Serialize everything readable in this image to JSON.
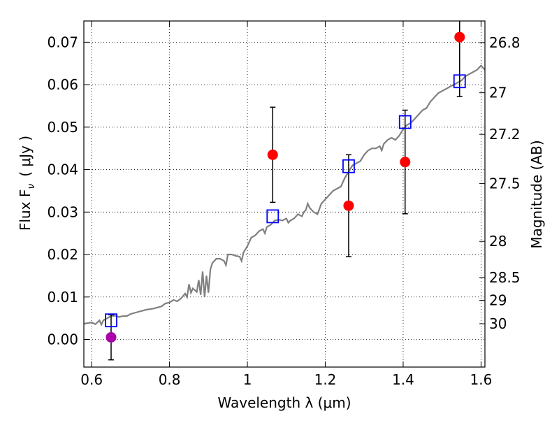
{
  "chart_data": {
    "type": "scatter",
    "xlabel": "Wavelength  λ (μm)",
    "ylabel": "Flux  F",
    "ylabel_sub": "ν",
    "ylabel_units": "( μJy )",
    "ylabel_right": "Magnitude (AB)",
    "xlim": [
      0.58,
      1.61
    ],
    "ylim": [
      -0.0065,
      0.075
    ],
    "grid": true,
    "x_ticks": [
      {
        "value": 0.6,
        "label": "0.6"
      },
      {
        "value": 0.8,
        "label": "0.8"
      },
      {
        "value": 1.0,
        "label": "1"
      },
      {
        "value": 1.2,
        "label": "1.2"
      },
      {
        "value": 1.4,
        "label": "1.4"
      },
      {
        "value": 1.6,
        "label": "1.6"
      }
    ],
    "y_ticks": [
      {
        "value": 0.0,
        "label": "0.00"
      },
      {
        "value": 0.01,
        "label": "0.01"
      },
      {
        "value": 0.02,
        "label": "0.02"
      },
      {
        "value": 0.03,
        "label": "0.03"
      },
      {
        "value": 0.04,
        "label": "0.04"
      },
      {
        "value": 0.05,
        "label": "0.05"
      },
      {
        "value": 0.06,
        "label": "0.06"
      },
      {
        "value": 0.07,
        "label": "0.07"
      }
    ],
    "right_ticks": [
      {
        "flux": 0.0699,
        "label": "26.8"
      },
      {
        "flux": 0.0581,
        "label": "27"
      },
      {
        "flux": 0.0483,
        "label": "27.2"
      },
      {
        "flux": 0.0367,
        "label": "27.5"
      },
      {
        "flux": 0.0231,
        "label": "28"
      },
      {
        "flux": 0.0146,
        "label": "28.5"
      },
      {
        "flux": 0.0092,
        "label": "29"
      },
      {
        "flux": 0.0037,
        "label": "30"
      }
    ],
    "series": [
      {
        "kind": "model_sed",
        "color": "#808080",
        "points": [
          [
            0.58,
            0.0037
          ],
          [
            0.6,
            0.004
          ],
          [
            0.61,
            0.0036
          ],
          [
            0.62,
            0.0045
          ],
          [
            0.625,
            0.0035
          ],
          [
            0.63,
            0.0045
          ],
          [
            0.64,
            0.005
          ],
          [
            0.65,
            0.0055
          ],
          [
            0.66,
            0.0056
          ],
          [
            0.67,
            0.0053
          ],
          [
            0.68,
            0.0055
          ],
          [
            0.69,
            0.0055
          ],
          [
            0.7,
            0.006
          ],
          [
            0.72,
            0.0065
          ],
          [
            0.74,
            0.007
          ],
          [
            0.76,
            0.0073
          ],
          [
            0.78,
            0.0078
          ],
          [
            0.785,
            0.0082
          ],
          [
            0.79,
            0.0085
          ],
          [
            0.8,
            0.0087
          ],
          [
            0.81,
            0.0093
          ],
          [
            0.82,
            0.009
          ],
          [
            0.83,
            0.0097
          ],
          [
            0.84,
            0.0108
          ],
          [
            0.845,
            0.01
          ],
          [
            0.85,
            0.013
          ],
          [
            0.855,
            0.011
          ],
          [
            0.86,
            0.012
          ],
          [
            0.87,
            0.0112
          ],
          [
            0.875,
            0.014
          ],
          [
            0.88,
            0.0105
          ],
          [
            0.885,
            0.016
          ],
          [
            0.89,
            0.01
          ],
          [
            0.895,
            0.015
          ],
          [
            0.9,
            0.011
          ],
          [
            0.905,
            0.0165
          ],
          [
            0.91,
            0.018
          ],
          [
            0.92,
            0.019
          ],
          [
            0.93,
            0.019
          ],
          [
            0.94,
            0.0185
          ],
          [
            0.945,
            0.0175
          ],
          [
            0.95,
            0.02
          ],
          [
            0.96,
            0.02
          ],
          [
            0.97,
            0.0197
          ],
          [
            0.98,
            0.0195
          ],
          [
            0.985,
            0.0185
          ],
          [
            0.99,
            0.0205
          ],
          [
            1.0,
            0.022
          ],
          [
            1.01,
            0.024
          ],
          [
            1.02,
            0.0245
          ],
          [
            1.03,
            0.0255
          ],
          [
            1.04,
            0.026
          ],
          [
            1.045,
            0.025
          ],
          [
            1.05,
            0.0265
          ],
          [
            1.06,
            0.027
          ],
          [
            1.07,
            0.028
          ],
          [
            1.08,
            0.0282
          ],
          [
            1.09,
            0.028
          ],
          [
            1.1,
            0.0285
          ],
          [
            1.105,
            0.0275
          ],
          [
            1.11,
            0.028
          ],
          [
            1.12,
            0.0285
          ],
          [
            1.13,
            0.0295
          ],
          [
            1.14,
            0.029
          ],
          [
            1.145,
            0.03
          ],
          [
            1.15,
            0.0305
          ],
          [
            1.155,
            0.032
          ],
          [
            1.16,
            0.031
          ],
          [
            1.17,
            0.03
          ],
          [
            1.18,
            0.0295
          ],
          [
            1.19,
            0.032
          ],
          [
            1.2,
            0.033
          ],
          [
            1.21,
            0.034
          ],
          [
            1.22,
            0.035
          ],
          [
            1.23,
            0.0355
          ],
          [
            1.24,
            0.036
          ],
          [
            1.25,
            0.038
          ],
          [
            1.26,
            0.0395
          ],
          [
            1.27,
            0.041
          ],
          [
            1.28,
            0.0415
          ],
          [
            1.29,
            0.042
          ],
          [
            1.3,
            0.0435
          ],
          [
            1.31,
            0.0445
          ],
          [
            1.32,
            0.045
          ],
          [
            1.33,
            0.045
          ],
          [
            1.34,
            0.0455
          ],
          [
            1.345,
            0.0445
          ],
          [
            1.35,
            0.046
          ],
          [
            1.36,
            0.047
          ],
          [
            1.37,
            0.0475
          ],
          [
            1.38,
            0.047
          ],
          [
            1.39,
            0.048
          ],
          [
            1.4,
            0.0495
          ],
          [
            1.41,
            0.0505
          ],
          [
            1.42,
            0.051
          ],
          [
            1.43,
            0.052
          ],
          [
            1.44,
            0.053
          ],
          [
            1.45,
            0.054
          ],
          [
            1.46,
            0.0545
          ],
          [
            1.47,
            0.056
          ],
          [
            1.48,
            0.057
          ],
          [
            1.49,
            0.058
          ],
          [
            1.5,
            0.0585
          ],
          [
            1.51,
            0.059
          ],
          [
            1.52,
            0.0595
          ],
          [
            1.53,
            0.06
          ],
          [
            1.54,
            0.0605
          ],
          [
            1.55,
            0.061
          ],
          [
            1.56,
            0.062
          ],
          [
            1.57,
            0.0625
          ],
          [
            1.58,
            0.063
          ],
          [
            1.59,
            0.0635
          ],
          [
            1.6,
            0.0645
          ],
          [
            1.61,
            0.0635
          ]
        ]
      },
      {
        "kind": "model_band_flux",
        "marker": "open_square",
        "color": "#0000ff",
        "points": [
          [
            0.65,
            0.0045
          ],
          [
            1.065,
            0.029
          ],
          [
            1.26,
            0.0408
          ],
          [
            1.405,
            0.0512
          ],
          [
            1.545,
            0.0608
          ]
        ]
      },
      {
        "kind": "observed",
        "marker": "filled_circle",
        "color": "#ff0000",
        "points": [
          {
            "x": 1.065,
            "y": 0.0435,
            "err": 0.0112
          },
          {
            "x": 1.26,
            "y": 0.0315,
            "err": 0.012
          },
          {
            "x": 1.405,
            "y": 0.0418,
            "err": 0.0122
          },
          {
            "x": 1.545,
            "y": 0.0712,
            "err": 0.014
          }
        ]
      },
      {
        "kind": "observed_upper",
        "marker": "filled_circle",
        "color": "#aa00aa",
        "points": [
          {
            "x": 0.65,
            "y": 0.0005,
            "err": 0.0053
          }
        ]
      }
    ]
  }
}
